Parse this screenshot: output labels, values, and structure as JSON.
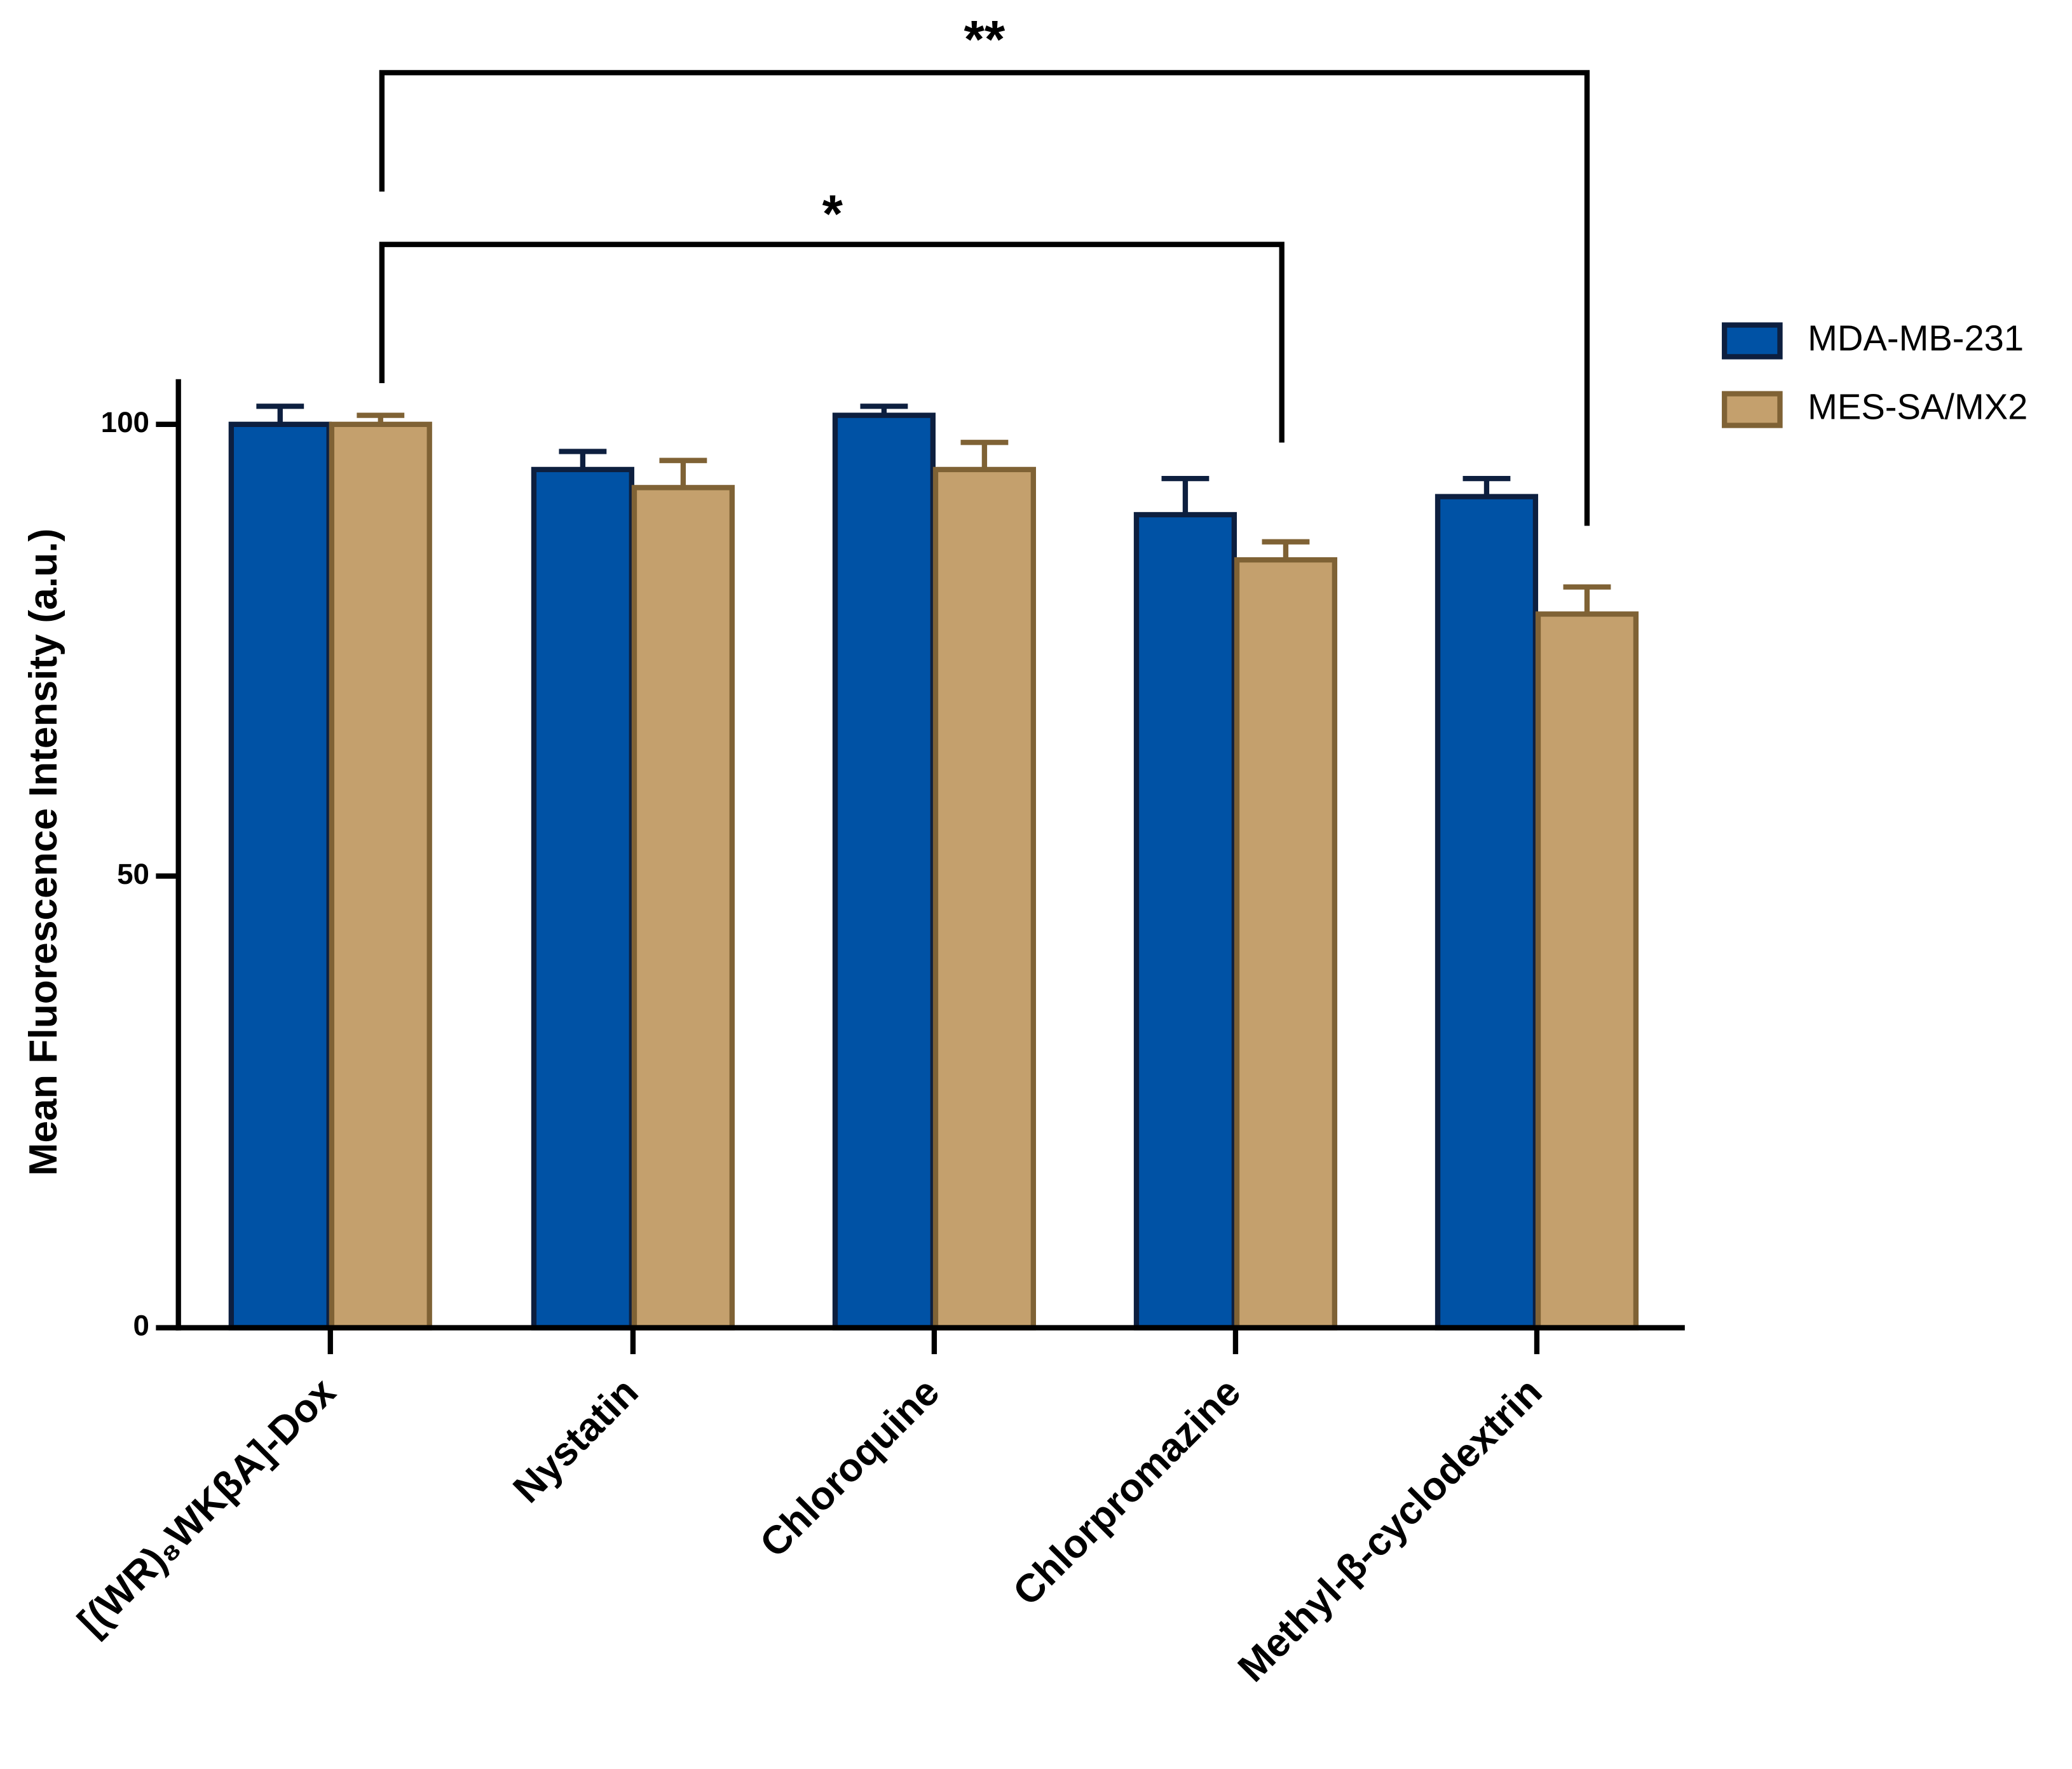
{
  "chart_data": {
    "type": "bar",
    "y_label": "Mean Fluorescence Intensity (a.u.)",
    "categories": [
      "[(WR)₈WKβA]-Dox",
      "Nystatin",
      "Chloroquine",
      "Chlorpromazine",
      "Methyl-β-cyclodextrin"
    ],
    "series": [
      {
        "name": "MDA-MB-231",
        "color": "#0052a5",
        "edge_color": "#0d1f3f",
        "values": [
          100,
          95,
          101,
          90,
          92
        ],
        "errors": [
          2,
          2,
          1,
          4,
          2
        ]
      },
      {
        "name": "MES-SA/MX2",
        "color": "#c4a06d",
        "edge_color": "#7f6235",
        "values": [
          100,
          93,
          95,
          85,
          79
        ],
        "errors": [
          1,
          3,
          3,
          2,
          3
        ]
      }
    ],
    "ylim": [
      0,
      105
    ],
    "yticks": [
      0,
      50,
      100
    ],
    "legend": "right",
    "annotations": [
      "**",
      "*"
    ]
  }
}
